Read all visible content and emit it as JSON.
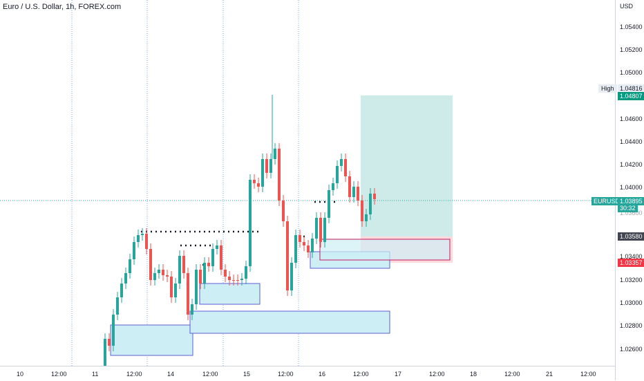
{
  "header": {
    "title": "Euro / U.S. Dollar, 1h, FOREX.com"
  },
  "price_axis": {
    "currency_label": "USD",
    "ticks": [
      "1.05400",
      "1.05200",
      "1.05000",
      "1.04600",
      "1.04400",
      "1.04200",
      "1.04000",
      "1.03600",
      "1.03400",
      "1.03200",
      "1.03000",
      "1.02800",
      "1.02600"
    ]
  },
  "time_axis": {
    "ticks": [
      "10",
      "12:00",
      "11",
      "12:00",
      "14",
      "12:00",
      "15",
      "12:00",
      "16",
      "12:00",
      "17",
      "12:00",
      "18",
      "12:00",
      "21",
      "12:00"
    ]
  },
  "price_tags": {
    "high_label": "High",
    "high_value": "1.04816",
    "target_value": "1.04807",
    "symbol": "EURUSD",
    "current_value": "1.03895",
    "countdown": "30:32",
    "entry_value": "1.03580",
    "stop_value": "1.03357"
  },
  "colors": {
    "up": "#26a69a",
    "down": "#ef5350",
    "target_tag": "#089981",
    "entry_tag": "#434651",
    "stop_tag": "#f23645",
    "zone_fill": "#cdeef5",
    "zone_border": "#5b5fd6"
  }
}
